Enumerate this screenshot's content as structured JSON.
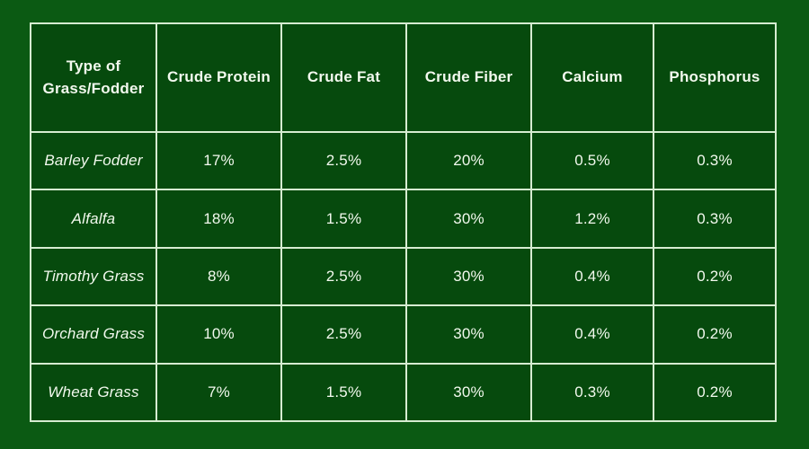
{
  "page": {
    "colors": {
      "background": "#0b5a13",
      "cell_fill": "#064a0d",
      "border": "#d6ecd1",
      "text": "#f2f9ee"
    }
  },
  "chart_data": {
    "type": "table",
    "title": "",
    "columns": [
      "Type of Grass/Fodder",
      "Crude Protein",
      "Crude Fat",
      "Crude Fiber",
      "Calcium",
      "Phosphorus"
    ],
    "rows": [
      [
        "Barley Fodder",
        "17%",
        "2.5%",
        "20%",
        "0.5%",
        "0.3%"
      ],
      [
        "Alfalfa",
        "18%",
        "1.5%",
        "30%",
        "1.2%",
        "0.3%"
      ],
      [
        "Timothy Grass",
        "8%",
        "2.5%",
        "30%",
        "0.4%",
        "0.2%"
      ],
      [
        "Orchard Grass",
        "10%",
        "2.5%",
        "30%",
        "0.4%",
        "0.2%"
      ],
      [
        "Wheat Grass",
        "7%",
        "1.5%",
        "30%",
        "0.3%",
        "0.2%"
      ]
    ]
  }
}
